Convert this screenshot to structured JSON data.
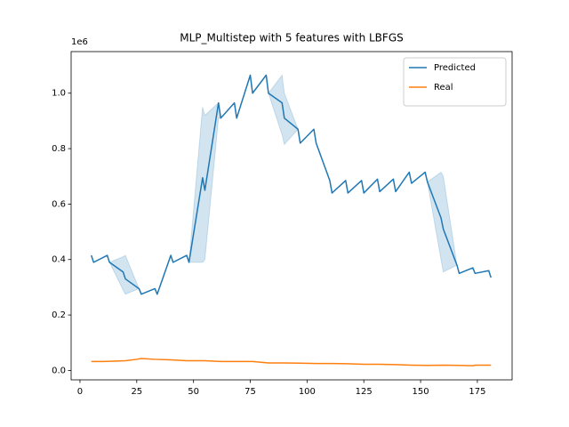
{
  "chart_data": {
    "type": "line",
    "title": "MLP_Multistep with 5 features with LBFGS",
    "y_offset_text": "1e6",
    "xlim": [
      -3.9,
      190.3
    ],
    "ylim": [
      -0.034,
      1.15
    ],
    "xticks": [
      0,
      25,
      50,
      75,
      100,
      125,
      150,
      175
    ],
    "yticks": [
      {
        "value": 0,
        "label": "0.0"
      },
      0.2,
      0.4,
      0.6,
      0.8,
      {
        "value": 1,
        "label": "1.0"
      }
    ],
    "legend": "upper right",
    "series": [
      {
        "name": "Predicted",
        "color": "#1f77b4",
        "band_color": "#1f77b4",
        "x": [
          5,
          6,
          12,
          13,
          19,
          20,
          26,
          27,
          33,
          34,
          40,
          41,
          47,
          48,
          54,
          55,
          61,
          62,
          68,
          69,
          75,
          76,
          82,
          83,
          89,
          90,
          96,
          97,
          103,
          104,
          110,
          111,
          117,
          118,
          124,
          125,
          131,
          132,
          138,
          139,
          145,
          146,
          152,
          153,
          159,
          160,
          166,
          167,
          173,
          174,
          180,
          181
        ],
        "values": [
          0.415,
          0.39,
          0.415,
          0.39,
          0.355,
          0.33,
          0.295,
          0.275,
          0.295,
          0.275,
          0.415,
          0.39,
          0.415,
          0.39,
          0.695,
          0.65,
          0.965,
          0.91,
          0.965,
          0.91,
          1.065,
          1.0,
          1.065,
          1.0,
          0.965,
          0.91,
          0.87,
          0.82,
          0.87,
          0.82,
          0.685,
          0.64,
          0.685,
          0.64,
          0.685,
          0.64,
          0.69,
          0.645,
          0.69,
          0.645,
          0.715,
          0.675,
          0.715,
          0.68,
          0.55,
          0.51,
          0.38,
          0.35,
          0.37,
          0.35,
          0.36,
          0.335
        ],
        "lower": [
          0.415,
          0.39,
          0.415,
          0.39,
          0.29,
          0.275,
          0.295,
          0.275,
          0.295,
          0.275,
          0.415,
          0.39,
          0.415,
          0.39,
          0.39,
          0.4,
          0.91,
          0.91,
          0.965,
          0.91,
          1.065,
          1.0,
          1.065,
          1.0,
          0.85,
          0.815,
          0.87,
          0.82,
          0.87,
          0.82,
          0.685,
          0.64,
          0.685,
          0.64,
          0.685,
          0.64,
          0.69,
          0.645,
          0.69,
          0.645,
          0.715,
          0.675,
          0.715,
          0.68,
          0.4,
          0.355,
          0.38,
          0.35,
          0.37,
          0.35,
          0.36,
          0.335
        ],
        "upper": [
          0.415,
          0.39,
          0.415,
          0.39,
          0.41,
          0.415,
          0.295,
          0.275,
          0.295,
          0.275,
          0.415,
          0.39,
          0.415,
          0.39,
          0.95,
          0.92,
          0.965,
          0.91,
          0.965,
          0.91,
          1.065,
          1.0,
          1.065,
          1.0,
          1.065,
          1.0,
          0.87,
          0.82,
          0.87,
          0.82,
          0.685,
          0.64,
          0.685,
          0.64,
          0.685,
          0.64,
          0.69,
          0.645,
          0.69,
          0.645,
          0.715,
          0.675,
          0.715,
          0.68,
          0.715,
          0.7,
          0.38,
          0.35,
          0.37,
          0.35,
          0.36,
          0.335
        ]
      },
      {
        "name": "Real",
        "color": "#ff7f0e",
        "x": [
          5,
          10,
          20,
          25,
          27,
          33,
          40,
          47,
          55,
          62,
          69,
          76,
          83,
          90,
          97,
          104,
          111,
          118,
          125,
          132,
          139,
          146,
          153,
          160,
          167,
          173,
          174,
          181
        ],
        "values": [
          0.032,
          0.032,
          0.035,
          0.04,
          0.043,
          0.04,
          0.038,
          0.035,
          0.035,
          0.032,
          0.032,
          0.032,
          0.027,
          0.027,
          0.026,
          0.025,
          0.025,
          0.024,
          0.022,
          0.022,
          0.021,
          0.019,
          0.018,
          0.019,
          0.018,
          0.017,
          0.019,
          0.019
        ]
      }
    ]
  }
}
